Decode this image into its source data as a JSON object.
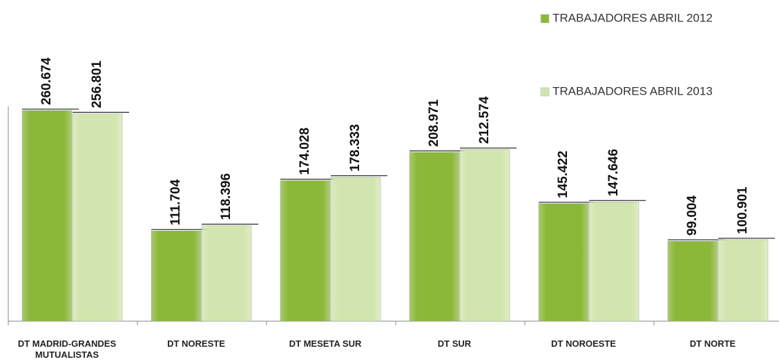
{
  "chart_data": {
    "type": "bar",
    "categories": [
      "DT MADRID-GRANDES MUTUALISTAS",
      "DT NORESTE",
      "DT MESETA SUR",
      "DT SUR",
      "DT NOROESTE",
      "DT NORTE"
    ],
    "series": [
      {
        "name": "TRABAJADORES ABRIL 2012",
        "color": "#8cb83a",
        "values": [
          260674,
          111704,
          174028,
          208971,
          145422,
          99004
        ],
        "value_labels": [
          "260.674",
          "111.704",
          "174.028",
          "208.971",
          "145.422",
          "99.004"
        ]
      },
      {
        "name": "TRABAJADORES ABRIL 2013",
        "color": "#d3e5ae",
        "values": [
          256801,
          118396,
          178333,
          212574,
          147646,
          100901
        ],
        "value_labels": [
          "256.801",
          "118.396",
          "178.333",
          "212.574",
          "147.646",
          "100.901"
        ]
      }
    ],
    "ylim": [
      0,
      300000
    ]
  }
}
